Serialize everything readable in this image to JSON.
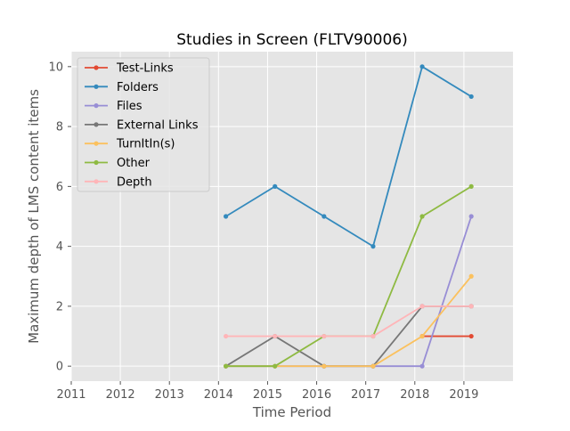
{
  "chart_data": {
    "type": "line",
    "title": "Studies in Screen (FLTV90006)",
    "xlabel": "Time Period",
    "ylabel": "Maximum depth of LMS content items",
    "xlim": [
      2011,
      2020
    ],
    "ylim": [
      -0.5,
      10.5
    ],
    "xticks": [
      2011,
      2012,
      2013,
      2014,
      2015,
      2016,
      2017,
      2018,
      2019
    ],
    "yticks": [
      0,
      2,
      4,
      6,
      8,
      10
    ],
    "grid": true,
    "legend_position": "upper-left",
    "x": [
      2014.15,
      2015.15,
      2016.15,
      2017.15,
      2018.15,
      2019.15
    ],
    "series": [
      {
        "name": "Test-Links",
        "color": "#E24A33",
        "values": [
          null,
          null,
          null,
          null,
          1,
          1
        ]
      },
      {
        "name": "Folders",
        "color": "#348ABD",
        "values": [
          5,
          6,
          5,
          4,
          10,
          9
        ]
      },
      {
        "name": "Files",
        "color": "#988ED5",
        "values": [
          0,
          0,
          0,
          0,
          0,
          5
        ]
      },
      {
        "name": "External Links",
        "color": "#777777",
        "values": [
          0,
          1,
          0,
          0,
          2,
          2
        ]
      },
      {
        "name": "TurnItIn(s)",
        "color": "#FBC15E",
        "values": [
          0,
          0,
          0,
          0,
          1,
          3
        ]
      },
      {
        "name": "Other",
        "color": "#8EBA42",
        "values": [
          0,
          0,
          1,
          1,
          5,
          6
        ]
      },
      {
        "name": "Depth",
        "color": "#FFB5B8",
        "values": [
          1,
          1,
          1,
          1,
          2,
          2
        ]
      }
    ]
  }
}
